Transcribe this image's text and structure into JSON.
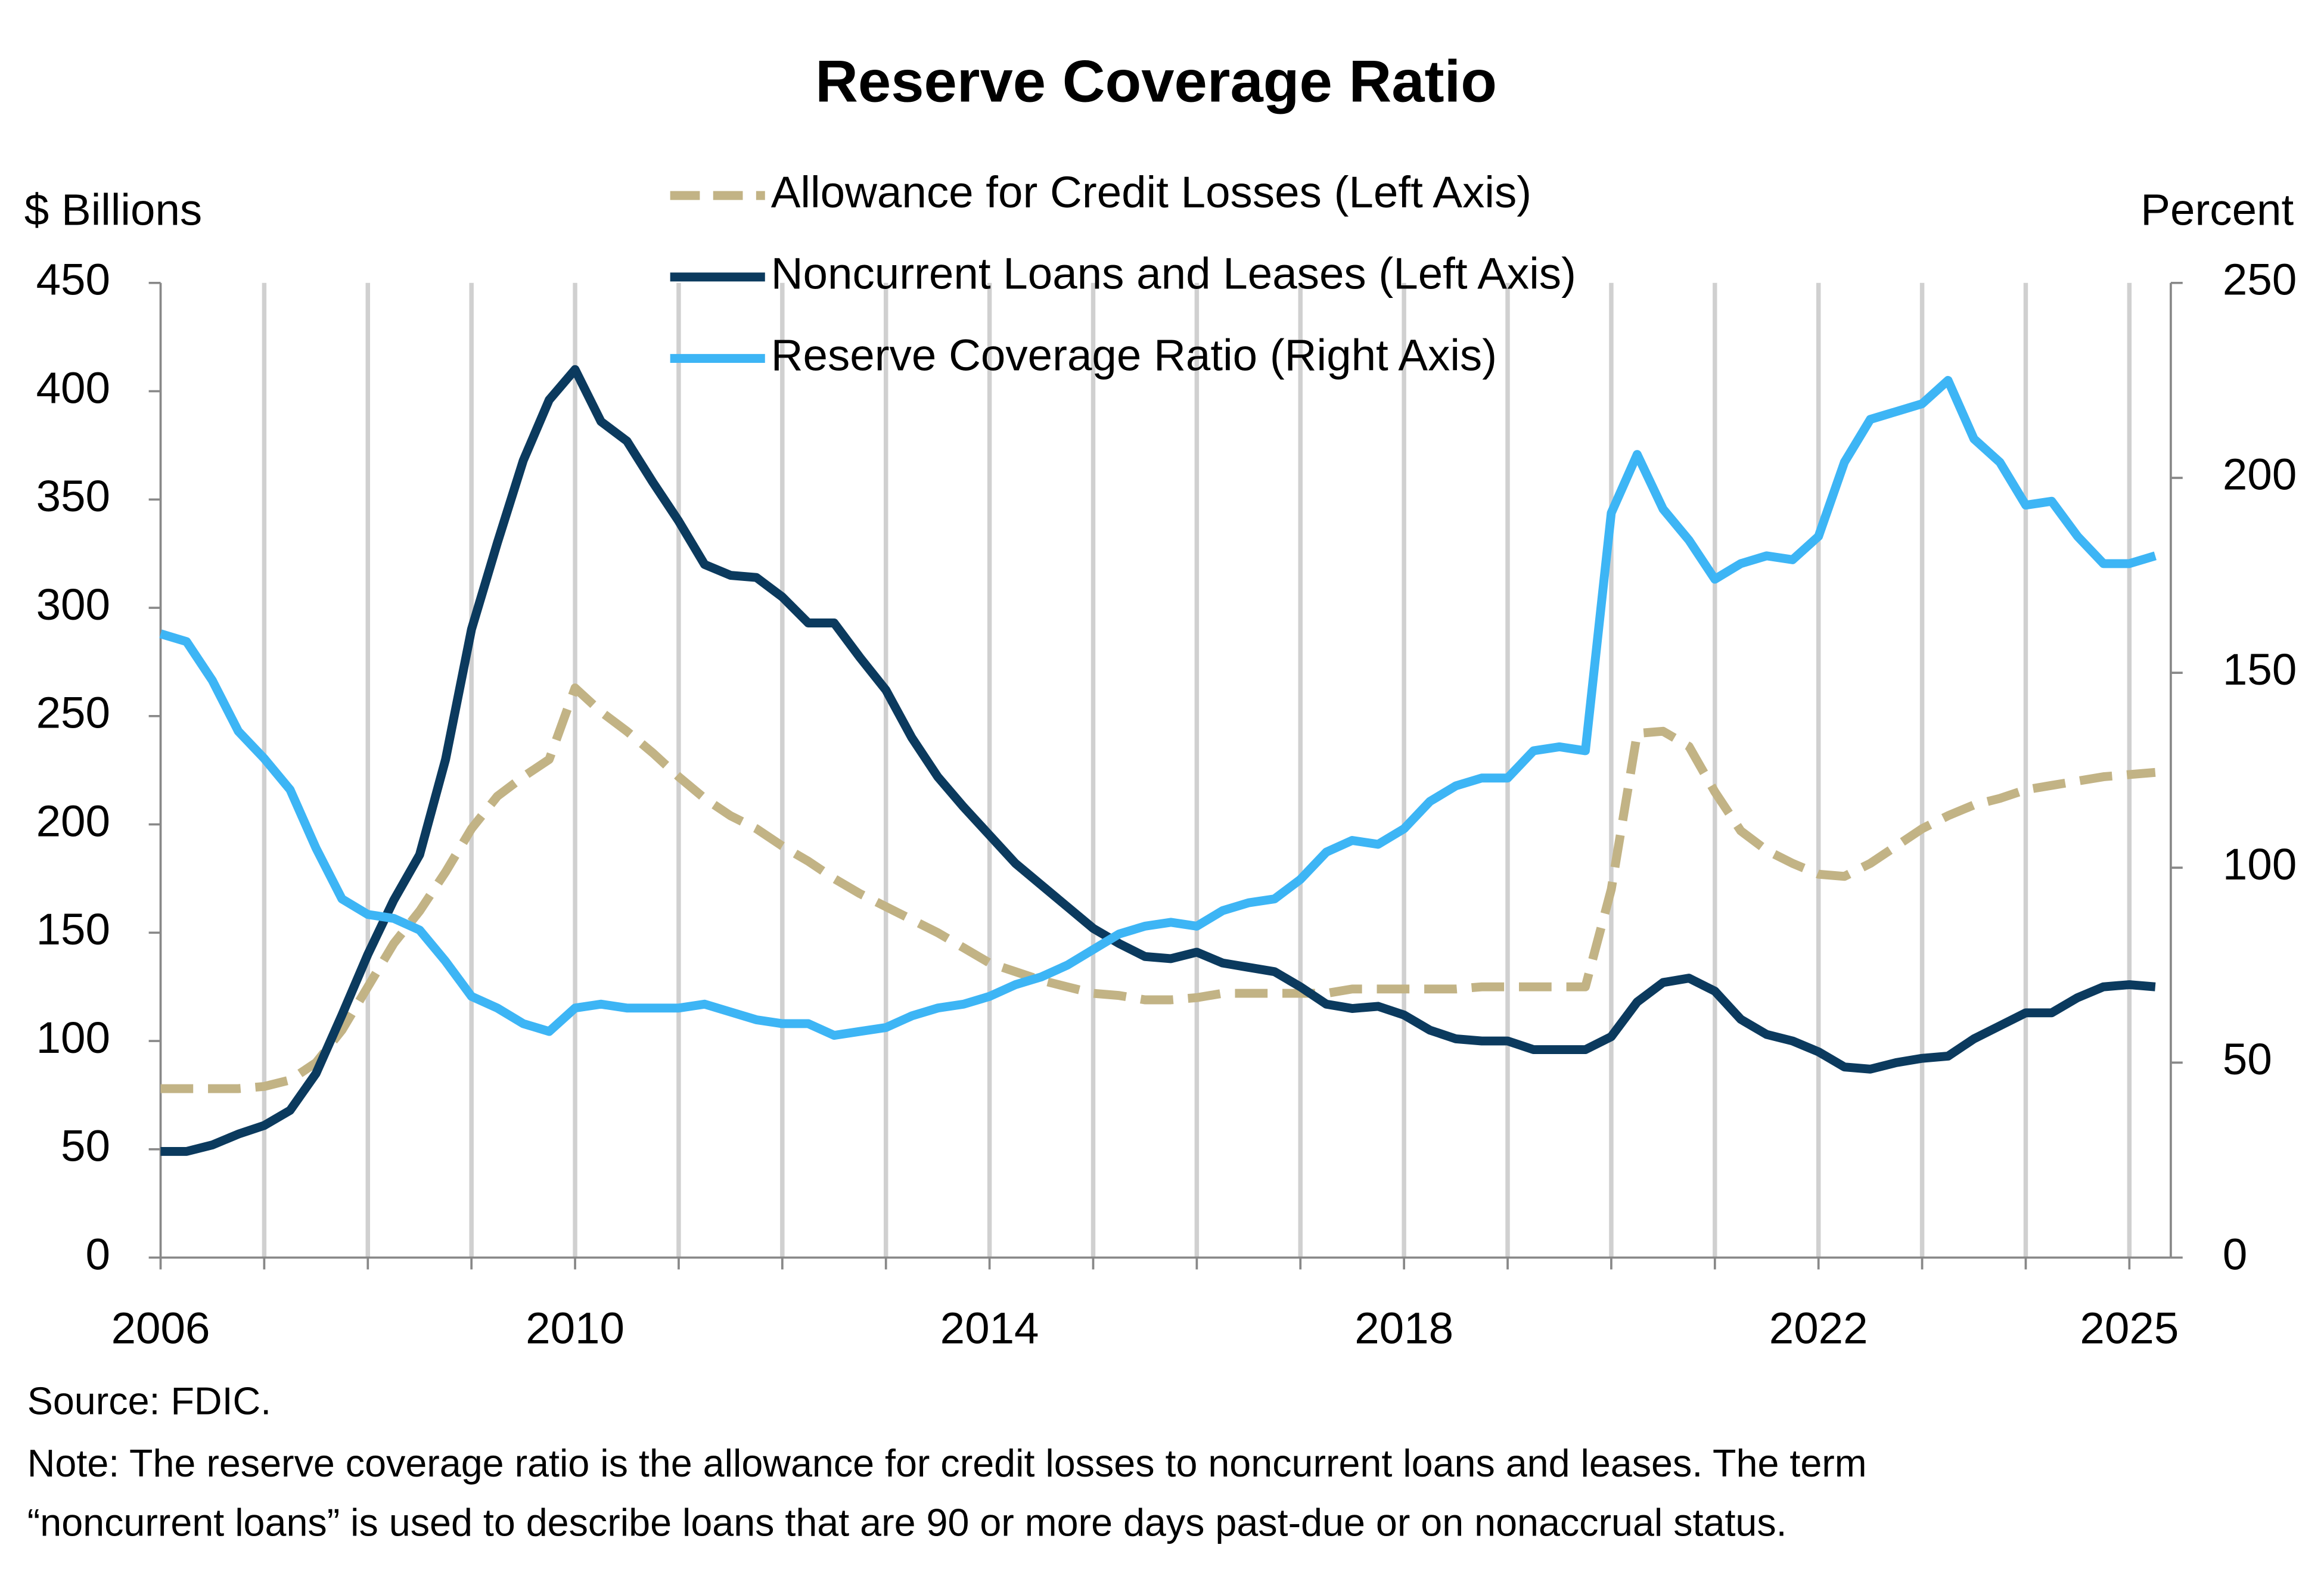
{
  "chart_data": {
    "type": "line",
    "title": "Reserve Coverage Ratio",
    "y_label": "$ Billions",
    "y2_label": "Percent",
    "source": "Source: FDIC.",
    "note_lines": [
      "Note: The reserve coverage ratio is the allowance for credit losses to noncurrent loans and leases. The term",
      "“noncurrent loans” is used to describe loans that are 90 or more days past-due or on nonaccrual status."
    ],
    "x": [
      2006,
      2006.25,
      2006.5,
      2006.75,
      2007,
      2007.25,
      2007.5,
      2007.75,
      2008,
      2008.25,
      2008.5,
      2008.75,
      2009,
      2009.25,
      2009.5,
      2009.75,
      2010,
      2010.25,
      2010.5,
      2010.75,
      2011,
      2011.25,
      2011.5,
      2011.75,
      2012,
      2012.25,
      2012.5,
      2012.75,
      2013,
      2013.25,
      2013.5,
      2013.75,
      2014,
      2014.25,
      2014.5,
      2014.75,
      2015,
      2015.25,
      2015.5,
      2015.75,
      2016,
      2016.25,
      2016.5,
      2016.75,
      2017,
      2017.25,
      2017.5,
      2017.75,
      2018,
      2018.25,
      2018.5,
      2018.75,
      2019,
      2019.25,
      2019.5,
      2019.75,
      2020,
      2020.25,
      2020.5,
      2020.75,
      2021,
      2021.25,
      2021.5,
      2021.75,
      2022,
      2022.25,
      2022.5,
      2022.75,
      2023,
      2023.25,
      2023.5,
      2023.75,
      2024,
      2024.25,
      2024.5,
      2024.75,
      2025,
      2025.25
    ],
    "xlim": [
      2006,
      2025.4
    ],
    "xticks": [
      2006,
      2010,
      2014,
      2018,
      2022,
      2025
    ],
    "x_minor_ticks": [
      2007,
      2008,
      2009,
      2011,
      2012,
      2013,
      2015,
      2016,
      2017,
      2019,
      2020,
      2021,
      2023,
      2024
    ],
    "ylim": [
      0,
      450
    ],
    "yticks": [
      0,
      50,
      100,
      150,
      200,
      250,
      300,
      350,
      400,
      450
    ],
    "y2lim": [
      0,
      250
    ],
    "y2ticks": [
      0,
      50,
      100,
      150,
      200,
      250
    ],
    "grid": "x",
    "legend": "top",
    "series": [
      {
        "name": "Allowance for Credit Losses (Left Axis)",
        "color": "#c2b385",
        "dash": true,
        "values": [
          78,
          78,
          78,
          78,
          79,
          82,
          90,
          105,
          125,
          145,
          160,
          178,
          198,
          213,
          222,
          230,
          263,
          252,
          243,
          233,
          222,
          212,
          204,
          198,
          190,
          183,
          175,
          168,
          162,
          156,
          150,
          143,
          136,
          132,
          128,
          125,
          122,
          121,
          119,
          119,
          120,
          122,
          122,
          122,
          122,
          122,
          124,
          124,
          124,
          124,
          124,
          125,
          125,
          125,
          125,
          125,
          170,
          242,
          243,
          236,
          215,
          197,
          188,
          182,
          177,
          176,
          182,
          190,
          198,
          204,
          209,
          212,
          216,
          218,
          220,
          222,
          223,
          224
        ]
      },
      {
        "name": "Noncurrent Loans and Leases (Left Axis)",
        "color": "#0b3a5e",
        "dash": false,
        "values": [
          49,
          49,
          52,
          57,
          61,
          68,
          85,
          112,
          140,
          165,
          186,
          230,
          290,
          330,
          368,
          396,
          410,
          386,
          377,
          358,
          340,
          320,
          315,
          314,
          305,
          293,
          293,
          277,
          262,
          240,
          222,
          208,
          195,
          182,
          172,
          162,
          152,
          145,
          139,
          138,
          141,
          136,
          134,
          132,
          125,
          117,
          115,
          116,
          112,
          105,
          101,
          100,
          100,
          96,
          96,
          96,
          102,
          118,
          127,
          129,
          123,
          110,
          103,
          100,
          95,
          88,
          87,
          90,
          92,
          93,
          101,
          107,
          113,
          113,
          120,
          125,
          126,
          125
        ]
      },
      {
        "name": "Reserve Coverage Ratio (Right Axis)",
        "color": "#3db5f5",
        "dash": false,
        "axis": "y2",
        "values": [
          160,
          158,
          148,
          135,
          128,
          120,
          105,
          92,
          88,
          87,
          84,
          76,
          67,
          64,
          60,
          58,
          64,
          65,
          64,
          64,
          64,
          65,
          63,
          61,
          60,
          60,
          57,
          58,
          59,
          62,
          64,
          65,
          67,
          70,
          72,
          75,
          79,
          83,
          85,
          86,
          85,
          89,
          91,
          92,
          97,
          104,
          107,
          106,
          110,
          117,
          121,
          123,
          123,
          130,
          131,
          130,
          191,
          206,
          192,
          184,
          174,
          178,
          180,
          179,
          185,
          204,
          215,
          217,
          219,
          225,
          210,
          204,
          193,
          194,
          185,
          178,
          178,
          180
        ]
      }
    ]
  }
}
